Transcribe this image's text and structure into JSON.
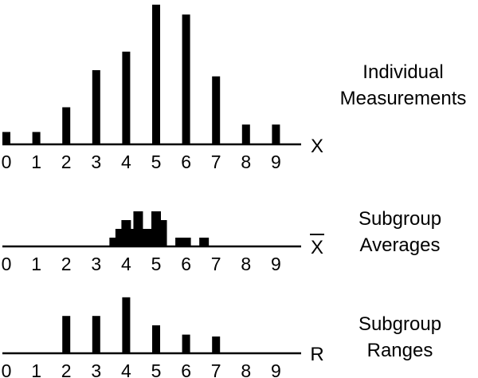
{
  "chart_data": [
    {
      "type": "bar",
      "label_lines": [
        "Individual",
        "Measurements"
      ],
      "axis_symbol": "X",
      "axis_symbol_overline": false,
      "tick_labels": [
        "0",
        "1",
        "2",
        "3",
        "4",
        "5",
        "6",
        "7",
        "8",
        "9"
      ],
      "bars": [
        {
          "x": 0,
          "y": 1
        },
        {
          "x": 1,
          "y": 1
        },
        {
          "x": 2,
          "y": 3
        },
        {
          "x": 3,
          "y": 6
        },
        {
          "x": 4,
          "y": 7.5
        },
        {
          "x": 5,
          "y": 11.3
        },
        {
          "x": 6,
          "y": 10.5
        },
        {
          "x": 7,
          "y": 5.5
        },
        {
          "x": 8,
          "y": 1.6
        },
        {
          "x": 9,
          "y": 1.6
        }
      ]
    },
    {
      "type": "bar",
      "label_lines": [
        "Subgroup",
        "Averages"
      ],
      "axis_symbol": "X",
      "axis_symbol_overline": true,
      "tick_labels": [
        "0",
        "1",
        "2",
        "3",
        "4",
        "5",
        "6",
        "7",
        "8",
        "9"
      ],
      "bars": [
        {
          "x": 3.6,
          "y": 1
        },
        {
          "x": 3.8,
          "y": 2
        },
        {
          "x": 4.0,
          "y": 3
        },
        {
          "x": 4.2,
          "y": 2
        },
        {
          "x": 4.4,
          "y": 4
        },
        {
          "x": 4.6,
          "y": 2
        },
        {
          "x": 4.8,
          "y": 2
        },
        {
          "x": 5.0,
          "y": 4
        },
        {
          "x": 5.2,
          "y": 3
        },
        {
          "x": 5.8,
          "y": 1
        },
        {
          "x": 6.0,
          "y": 1
        },
        {
          "x": 6.6,
          "y": 1
        }
      ]
    },
    {
      "type": "bar",
      "label_lines": [
        "Subgroup",
        "Ranges"
      ],
      "axis_symbol": "R",
      "axis_symbol_overline": false,
      "tick_labels": [
        "0",
        "1",
        "2",
        "3",
        "4",
        "5",
        "6",
        "7",
        "8",
        "9"
      ],
      "bars": [
        {
          "x": 2,
          "y": 4
        },
        {
          "x": 3,
          "y": 4
        },
        {
          "x": 4,
          "y": 6
        },
        {
          "x": 5,
          "y": 3
        },
        {
          "x": 6,
          "y": 2
        },
        {
          "x": 7,
          "y": 1.8
        }
      ]
    }
  ]
}
